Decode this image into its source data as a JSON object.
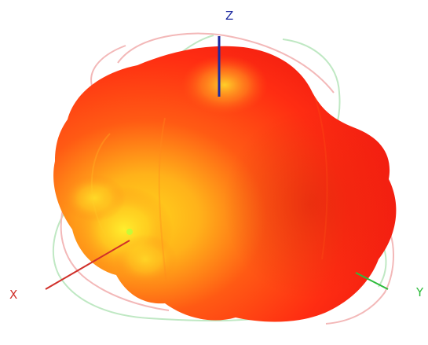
{
  "viewport": {
    "background": "#ffffff"
  },
  "axes": {
    "x": {
      "label": "X",
      "color": "#d0302a"
    },
    "y": {
      "label": "Y",
      "color": "#2dbb3b"
    },
    "z": {
      "label": "Z",
      "color": "#1d2aa0"
    }
  },
  "surface": {
    "colors": {
      "base": "#ff2a12",
      "mid": "#ff6a18",
      "highlight": "#ffd11f"
    }
  },
  "reference_rings": {
    "red": "#f2b7b7",
    "green": "#bfe8c3"
  }
}
